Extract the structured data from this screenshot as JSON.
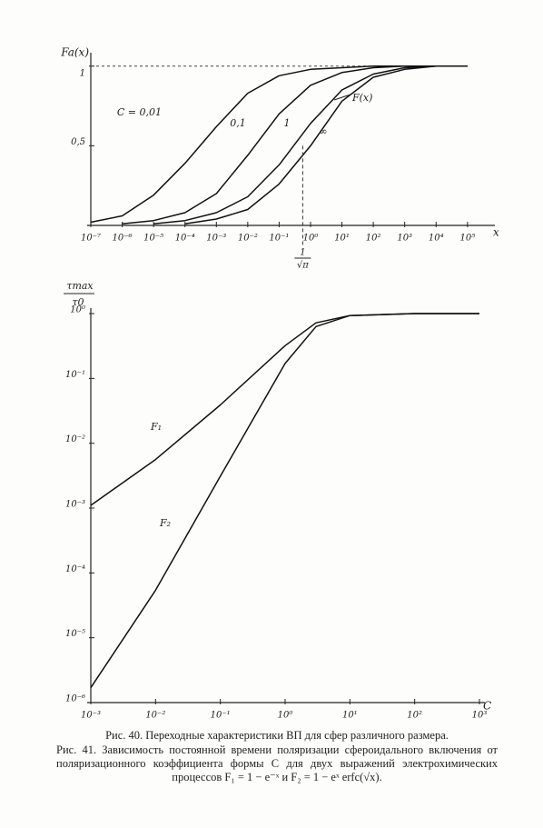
{
  "chart_data": [
    {
      "type": "line",
      "y_label": "Fa(x)",
      "x_label": "x",
      "x_log": true,
      "xlim": [
        1e-07,
        500000.0
      ],
      "ylim": [
        0,
        1.05
      ],
      "xticks": [
        {
          "value": 1e-07,
          "label": "10⁻⁷"
        },
        {
          "value": 1e-06,
          "label": "10⁻⁶"
        },
        {
          "value": 1e-05,
          "label": "10⁻⁵"
        },
        {
          "value": 0.0001,
          "label": "10⁻⁴"
        },
        {
          "value": 0.001,
          "label": "10⁻³"
        },
        {
          "value": 0.01,
          "label": "10⁻²"
        },
        {
          "value": 0.1,
          "label": "10⁻¹"
        },
        {
          "value": 1,
          "label": "10⁰"
        },
        {
          "value": 10,
          "label": "10¹"
        },
        {
          "value": 100,
          "label": "10²"
        },
        {
          "value": 1000,
          "label": "10³"
        },
        {
          "value": 10000,
          "label": "10⁴"
        },
        {
          "value": 100000,
          "label": "10⁵"
        }
      ],
      "yticks": [
        {
          "value": 0.5,
          "label": "0,5"
        },
        1
      ],
      "x": [
        1e-07,
        1e-06,
        1e-05,
        0.0001,
        0.001,
        0.01,
        0.1,
        1,
        10,
        100,
        1000,
        10000,
        100000
      ],
      "series": [
        {
          "name": "C = 0,01",
          "color": "#111",
          "values": [
            0.02,
            0.06,
            0.19,
            0.39,
            0.62,
            0.83,
            0.94,
            0.98,
            0.99,
            1,
            1,
            1,
            1
          ]
        },
        {
          "name": "0,1",
          "color": "#111",
          "values": [
            null,
            0.01,
            0.03,
            0.08,
            0.2,
            0.44,
            0.7,
            0.88,
            0.96,
            0.99,
            1,
            1,
            1
          ]
        },
        {
          "name": "1",
          "color": "#111",
          "values": [
            null,
            null,
            0.01,
            0.03,
            0.08,
            0.18,
            0.38,
            0.64,
            0.85,
            0.95,
            0.99,
            1,
            1
          ]
        },
        {
          "name": "∞",
          "color": "#111",
          "values": [
            null,
            null,
            null,
            0.01,
            0.04,
            0.1,
            0.26,
            0.5,
            0.78,
            0.93,
            0.98,
            1,
            1
          ]
        }
      ],
      "annotation": "F(x)",
      "marker": {
        "x": 0.564,
        "numerator": "1",
        "denominator": "√π"
      }
    },
    {
      "type": "line",
      "y_label_num": "τmax",
      "y_label_den": "τ0",
      "x_label": "C",
      "x_log": true,
      "y_log": true,
      "xlim": [
        0.001,
        1000
      ],
      "ylim": [
        1e-06,
        1
      ],
      "xticks": [
        {
          "value": 0.001,
          "label": "10⁻³"
        },
        {
          "value": 0.01,
          "label": "10⁻²"
        },
        {
          "value": 0.1,
          "label": "10⁻¹"
        },
        {
          "value": 1,
          "label": "10⁰"
        },
        {
          "value": 10,
          "label": "10¹"
        },
        {
          "value": 100,
          "label": "10²"
        },
        {
          "value": 1000,
          "label": "10³"
        }
      ],
      "yticks": [
        {
          "value": 1,
          "label": "10⁰"
        },
        {
          "value": 0.1,
          "label": "10⁻¹"
        },
        {
          "value": 0.01,
          "label": "10⁻²"
        },
        {
          "value": 0.001,
          "label": "10⁻³"
        },
        {
          "value": 0.0001,
          "label": "10⁻⁴"
        },
        {
          "value": 1e-05,
          "label": "10⁻⁵"
        },
        {
          "value": 1e-06,
          "label": "10⁻⁶"
        }
      ],
      "x": [
        0.001,
        0.01,
        0.1,
        1,
        3,
        10,
        100,
        1000
      ],
      "series": [
        {
          "name": "F₁",
          "color": "#111",
          "values": [
            0.0011,
            0.0056,
            0.039,
            0.32,
            0.72,
            0.93,
            1,
            1
          ]
        },
        {
          "name": "F₂",
          "color": "#111",
          "values": [
            1.7e-06,
            5.4e-05,
            0.0031,
            0.17,
            0.63,
            0.93,
            1,
            1
          ]
        }
      ]
    }
  ],
  "captions": [
    "Рис. 40. Переходные характеристики ВП для сфер различного размера.",
    "Рис. 41. Зависимость постоянной времени поляризации сфероидального включения от поляризационного коэффициента формы C для двух выражений электрохимических процессов F₁ = 1 − e⁻ˣ и F₂ = 1 − eˣ erfc(√x)."
  ]
}
